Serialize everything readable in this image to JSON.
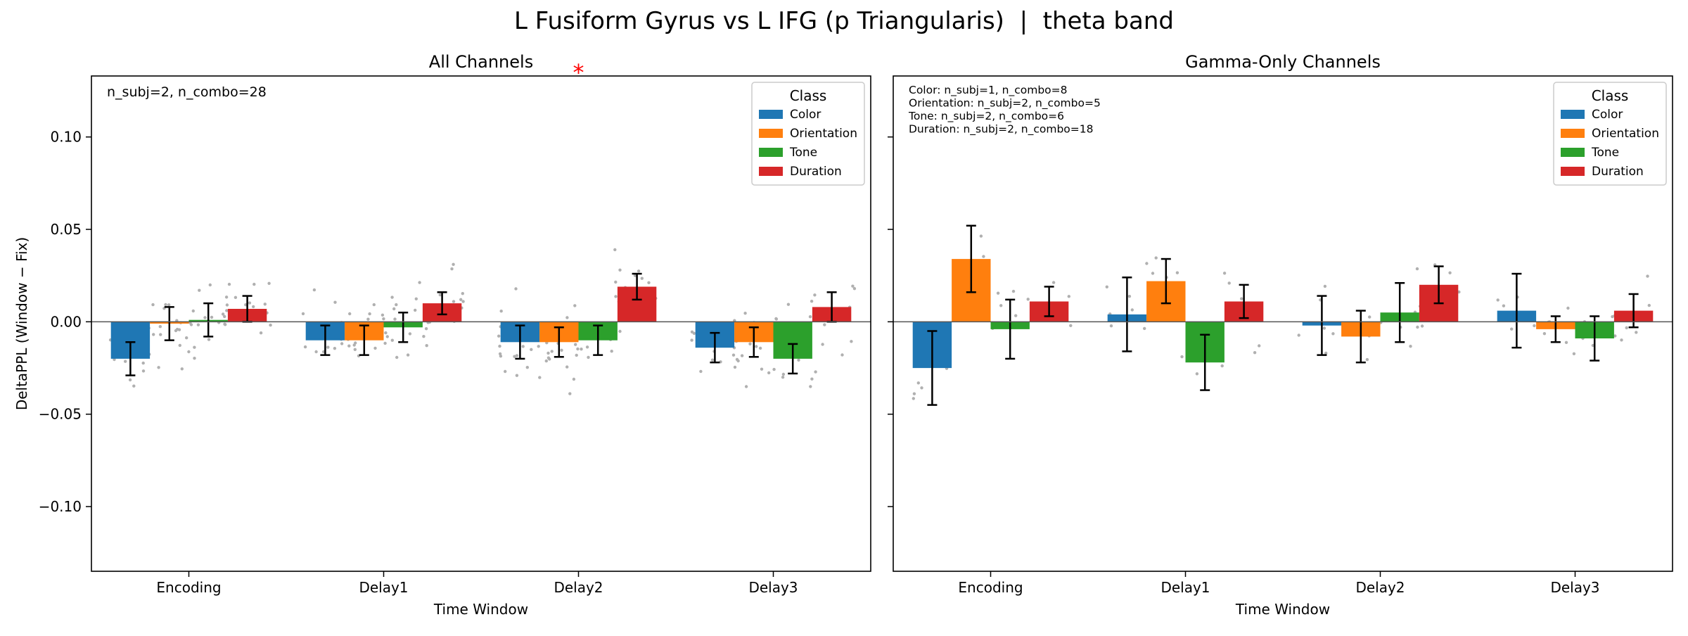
{
  "figure": {
    "title": "L Fusiform Gyrus vs L IFG (p Triangularis)  |  theta band",
    "y_axis_label": "DeltaPPL (Window − Fix)",
    "class_colors": {
      "Color": "#1f77b4",
      "Orientation": "#ff7f0e",
      "Tone": "#2ca02c",
      "Duration": "#d62728"
    },
    "jitter_color": "#b0b0b0",
    "significance_color": "#ff0000"
  },
  "chart_data": [
    {
      "type": "bar",
      "title": "All Channels",
      "xlabel": "Time Window",
      "ylabel": "DeltaPPL (Window − Fix)",
      "categories": [
        "Encoding",
        "Delay1",
        "Delay2",
        "Delay3"
      ],
      "ylim": [
        -0.135,
        0.133
      ],
      "yticks": [
        -0.1,
        -0.05,
        0.0,
        0.05,
        0.1
      ],
      "ytick_labels": [
        "−0.10",
        "−0.05",
        "0.00",
        "0.05",
        "0.10"
      ],
      "legend": {
        "title": "Class",
        "position": "top-right"
      },
      "annotation": "n_subj=2, n_combo=28",
      "significance": {
        "category": "Delay2",
        "symbol": "*"
      },
      "series": [
        {
          "name": "Color",
          "values": [
            -0.02,
            -0.01,
            -0.011,
            -0.014
          ],
          "errors": [
            0.009,
            0.008,
            0.009,
            0.008
          ]
        },
        {
          "name": "Orientation",
          "values": [
            -0.001,
            -0.01,
            -0.011,
            -0.011
          ],
          "errors": [
            0.009,
            0.008,
            0.008,
            0.008
          ]
        },
        {
          "name": "Tone",
          "values": [
            0.001,
            -0.003,
            -0.01,
            -0.02
          ],
          "errors": [
            0.009,
            0.008,
            0.008,
            0.008
          ]
        },
        {
          "name": "Duration",
          "values": [
            0.007,
            0.01,
            0.019,
            0.008
          ],
          "errors": [
            0.007,
            0.006,
            0.007,
            0.008
          ]
        }
      ]
    },
    {
      "type": "bar",
      "title": "Gamma-Only Channels",
      "xlabel": "Time Window",
      "ylabel": "",
      "categories": [
        "Encoding",
        "Delay1",
        "Delay2",
        "Delay3"
      ],
      "ylim": [
        -0.135,
        0.133
      ],
      "yticks": [
        -0.1,
        -0.05,
        0.0,
        0.05,
        0.1
      ],
      "ytick_labels": [
        "",
        "",
        "",
        "",
        ""
      ],
      "legend": {
        "title": "Class",
        "position": "top-right"
      },
      "annotation_lines": [
        "Color: n_subj=1, n_combo=8",
        "Orientation: n_subj=2, n_combo=5",
        "Tone: n_subj=2, n_combo=6",
        "Duration: n_subj=2, n_combo=18"
      ],
      "series": [
        {
          "name": "Color",
          "values": [
            -0.025,
            0.004,
            -0.002,
            0.006
          ],
          "errors": [
            0.02,
            0.02,
            0.016,
            0.02
          ]
        },
        {
          "name": "Orientation",
          "values": [
            0.034,
            0.022,
            -0.008,
            -0.004
          ],
          "errors": [
            0.018,
            0.012,
            0.014,
            0.007
          ]
        },
        {
          "name": "Tone",
          "values": [
            -0.004,
            -0.022,
            0.005,
            -0.009
          ],
          "errors": [
            0.016,
            0.015,
            0.016,
            0.012
          ]
        },
        {
          "name": "Duration",
          "values": [
            0.011,
            0.011,
            0.02,
            0.006
          ],
          "errors": [
            0.008,
            0.009,
            0.01,
            0.009
          ]
        }
      ]
    }
  ]
}
